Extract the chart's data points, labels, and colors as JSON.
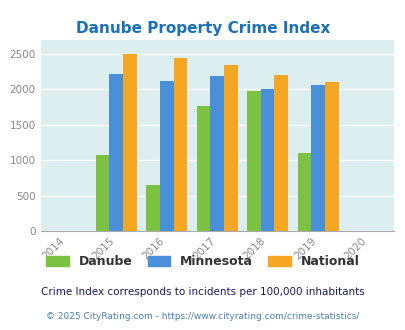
{
  "title": "Danube Property Crime Index",
  "years": [
    2015,
    2016,
    2017,
    2018,
    2019
  ],
  "danube": [
    1070,
    645,
    1770,
    1975,
    1100
  ],
  "minnesota": [
    2215,
    2115,
    2185,
    2000,
    2065
  ],
  "national": [
    2495,
    2445,
    2345,
    2195,
    2095
  ],
  "bar_colors": {
    "danube": "#7dc142",
    "minnesota": "#4a90d9",
    "national": "#f5a623"
  },
  "xlim": [
    2013.5,
    2020.5
  ],
  "ylim": [
    0,
    2700
  ],
  "yticks": [
    0,
    500,
    1000,
    1500,
    2000,
    2500
  ],
  "background_color": "#ddeef0",
  "title_color": "#1a6fba",
  "legend_labels": [
    "Danube",
    "Minnesota",
    "National"
  ],
  "legend_text_color": "#333333",
  "footnote1": "Crime Index corresponds to incidents per 100,000 inhabitants",
  "footnote2": "© 2025 CityRating.com - https://www.cityrating.com/crime-statistics/",
  "footnote1_color": "#1a1a5e",
  "footnote2_color": "#4a7fb5",
  "bar_width": 0.27,
  "xtick_labels": [
    "2014",
    "2015",
    "2016",
    "2017",
    "2018",
    "2019",
    "2020"
  ],
  "xtick_positions": [
    2014,
    2015,
    2016,
    2017,
    2018,
    2019,
    2020
  ]
}
